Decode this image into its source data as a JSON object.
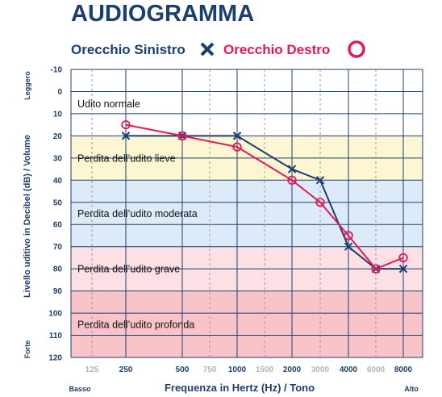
{
  "chart_data": {
    "type": "line",
    "title": "AUDIOGRAMMA",
    "xlabel": "Frequenza in Hertz (Hz) / Tono",
    "ylabel": "Livello uditivo in Decibel (dB) / Volume",
    "x_categories": [
      "125",
      "250",
      "500",
      "750",
      "1000",
      "1500",
      "2000",
      "3000",
      "4000",
      "6000",
      "8000"
    ],
    "x_minor": [
      "125",
      "750",
      "1500",
      "3000",
      "6000"
    ],
    "x_end_labels": {
      "low": "Basso",
      "high": "Alto"
    },
    "y_ticks": [
      -10,
      0,
      10,
      20,
      30,
      40,
      50,
      60,
      70,
      80,
      90,
      100,
      110,
      120
    ],
    "ylim": [
      -10,
      120
    ],
    "y_inverted": true,
    "y_end_labels": {
      "top": "Leggero",
      "bottom": "Forte"
    },
    "grid": true,
    "legend_position": "top",
    "bands": [
      {
        "label": "Udito normale",
        "from": -10,
        "to": 20,
        "color": "#ffffff"
      },
      {
        "label": "Perdita dell’udito lieve",
        "from": 20,
        "to": 40,
        "color": "#fdf6d2"
      },
      {
        "label": "Perdita dell’udito moderata",
        "from": 40,
        "to": 70,
        "color": "#ddeaf7"
      },
      {
        "label": "Perdita dell’udito grave",
        "from": 70,
        "to": 90,
        "color": "#fce0e3"
      },
      {
        "label": "Perdita dell’udito profonda",
        "from": 90,
        "to": 120,
        "color": "#f8c3c9"
      }
    ],
    "series": [
      {
        "name": "Orecchio Sinistro",
        "marker": "x",
        "color": "#1c3f6e",
        "points": [
          {
            "x": "250",
            "y": 20
          },
          {
            "x": "500",
            "y": 20
          },
          {
            "x": "1000",
            "y": 20
          },
          {
            "x": "2000",
            "y": 35
          },
          {
            "x": "3000",
            "y": 40
          },
          {
            "x": "4000",
            "y": 70
          },
          {
            "x": "6000",
            "y": 80
          },
          {
            "x": "8000",
            "y": 80
          }
        ]
      },
      {
        "name": "Orecchio Destro",
        "marker": "circle",
        "color": "#e0195b",
        "points": [
          {
            "x": "250",
            "y": 15
          },
          {
            "x": "500",
            "y": 20
          },
          {
            "x": "1000",
            "y": 25
          },
          {
            "x": "2000",
            "y": 40
          },
          {
            "x": "3000",
            "y": 50
          },
          {
            "x": "4000",
            "y": 65
          },
          {
            "x": "6000",
            "y": 80
          },
          {
            "x": "8000",
            "y": 75
          }
        ]
      }
    ]
  }
}
